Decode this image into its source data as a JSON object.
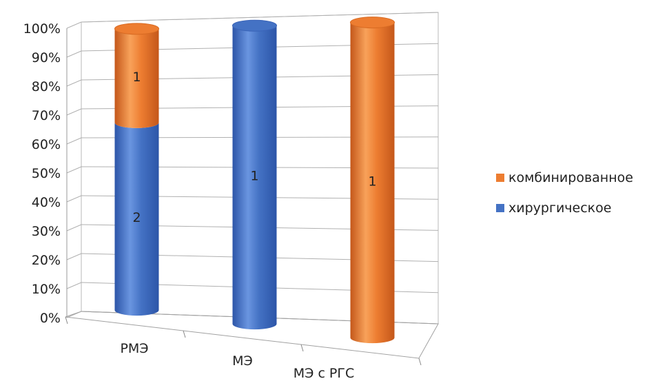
{
  "chart_data": {
    "type": "bar",
    "stacked": true,
    "percent_stacked": true,
    "categories": [
      "РМЭ",
      "МЭ",
      "МЭ с РГС"
    ],
    "series": [
      {
        "name": "хирургическое",
        "values": [
          2,
          1,
          0
        ],
        "color": "#4472c4"
      },
      {
        "name": "комбинированное",
        "values": [
          1,
          0,
          1
        ],
        "color": "#ed7d31"
      }
    ],
    "ylim": [
      0,
      100
    ],
    "yticks": [
      "0%",
      "10%",
      "20%",
      "30%",
      "40%",
      "50%",
      "60%",
      "70%",
      "80%",
      "90%",
      "100%"
    ],
    "grid": true,
    "legend_position": "right",
    "legend_order": [
      "комбинированное",
      "хирургическое"
    ]
  }
}
